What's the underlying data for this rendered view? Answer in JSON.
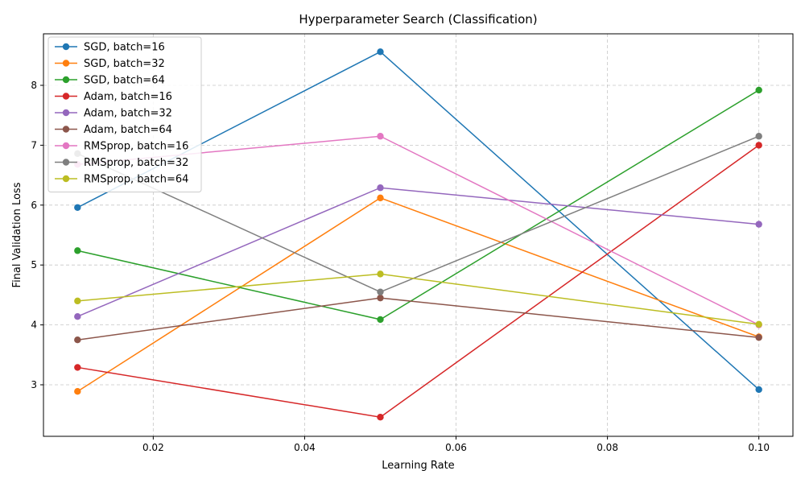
{
  "chart_data": {
    "type": "line",
    "title": "Hyperparameter Search (Classification)",
    "xlabel": "Learning Rate",
    "ylabel": "Final Validation Loss",
    "x": [
      0.01,
      0.05,
      0.1
    ],
    "xlim": [
      0.0055,
      0.1045
    ],
    "ylim": [
      2.14,
      8.86
    ],
    "xticks": [
      0.02,
      0.04,
      0.06,
      0.08,
      0.1
    ],
    "xtick_labels": [
      "0.02",
      "0.04",
      "0.06",
      "0.08",
      "0.10"
    ],
    "yticks": [
      3,
      4,
      5,
      6,
      7,
      8
    ],
    "ytick_labels": [
      "3",
      "4",
      "5",
      "6",
      "7",
      "8"
    ],
    "grid": true,
    "legend_position": "top-left",
    "marker": "circle",
    "series": [
      {
        "name": "SGD, batch=16",
        "color": "#1f77b4",
        "values": [
          5.96,
          8.56,
          2.92
        ]
      },
      {
        "name": "SGD, batch=32",
        "color": "#ff7f0e",
        "values": [
          2.89,
          6.12,
          3.8
        ]
      },
      {
        "name": "SGD, batch=64",
        "color": "#2ca02c",
        "values": [
          5.24,
          4.09,
          7.92
        ]
      },
      {
        "name": "Adam, batch=16",
        "color": "#d62728",
        "values": [
          3.29,
          2.46,
          7.0
        ]
      },
      {
        "name": "Adam, batch=32",
        "color": "#9467bd",
        "values": [
          4.14,
          6.29,
          5.68
        ]
      },
      {
        "name": "Adam, batch=64",
        "color": "#8c564b",
        "values": [
          3.75,
          4.45,
          3.79
        ]
      },
      {
        "name": "RMSprop, batch=16",
        "color": "#e377c2",
        "values": [
          6.68,
          7.15,
          4.0
        ]
      },
      {
        "name": "RMSprop, batch=32",
        "color": "#7f7f7f",
        "values": [
          6.86,
          4.55,
          7.15
        ]
      },
      {
        "name": "RMSprop, batch=64",
        "color": "#bcbd22",
        "values": [
          4.4,
          4.85,
          4.01
        ]
      }
    ]
  }
}
